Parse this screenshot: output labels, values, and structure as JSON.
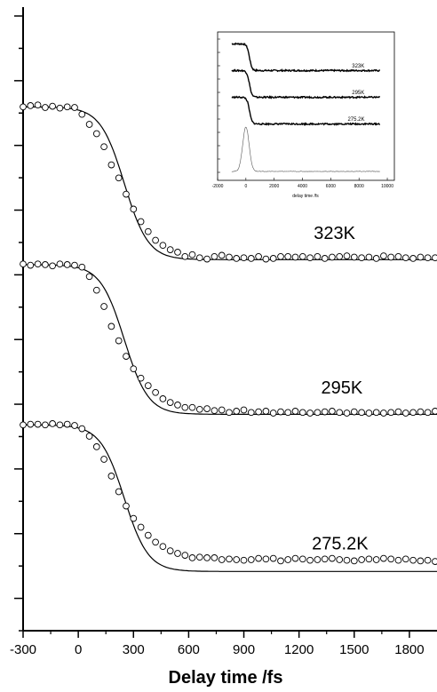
{
  "chart_data": [
    {
      "type": "scatter",
      "title": "",
      "xlabel": "Delay time /fs",
      "ylabel": "",
      "xlim": [
        -300,
        1950
      ],
      "xticks": [
        -300,
        0,
        300,
        600,
        900,
        1200,
        1500,
        1800
      ],
      "xtick_labels": [
        "-300",
        "0",
        "300",
        "600",
        "900",
        "1200",
        "1500",
        "1800"
      ],
      "ylim": [
        0,
        1
      ],
      "grid": false,
      "series": [
        {
          "name": "323K",
          "baseline": 0.84,
          "drop": 0.245,
          "center": 250,
          "width": 130,
          "x": [
            -300,
            -260,
            -220,
            -180,
            -140,
            -100,
            -60,
            -20,
            20,
            60,
            100,
            140,
            180,
            220,
            260,
            300,
            340,
            380,
            420,
            460,
            500,
            540,
            580,
            620,
            660,
            700,
            740,
            780,
            820,
            860,
            900,
            940,
            980,
            1020,
            1060,
            1100,
            1140,
            1180,
            1220,
            1260,
            1300,
            1340,
            1380,
            1420,
            1460,
            1500,
            1540,
            1580,
            1620,
            1660,
            1700,
            1740,
            1780,
            1820,
            1860,
            1900,
            1940
          ],
          "y": [
            0.84,
            0.842,
            0.843,
            0.839,
            0.841,
            0.838,
            0.84,
            0.839,
            0.828,
            0.812,
            0.797,
            0.776,
            0.747,
            0.726,
            0.7,
            0.676,
            0.656,
            0.64,
            0.626,
            0.618,
            0.611,
            0.607,
            0.6,
            0.603,
            0.598,
            0.596,
            0.6,
            0.602,
            0.599,
            0.597,
            0.598,
            0.597,
            0.6,
            0.596,
            0.597,
            0.6,
            0.6,
            0.599,
            0.6,
            0.598,
            0.6,
            0.597,
            0.599,
            0.6,
            0.601,
            0.599,
            0.598,
            0.599,
            0.597,
            0.601,
            0.599,
            0.6,
            0.598,
            0.597,
            0.599,
            0.598,
            0.598
          ],
          "label_x": 1280,
          "label_y": 0.628
        },
        {
          "name": "295K",
          "baseline": 0.587,
          "drop": 0.24,
          "center": 250,
          "width": 130,
          "x": [
            -300,
            -260,
            -220,
            -180,
            -140,
            -100,
            -60,
            -20,
            20,
            60,
            100,
            140,
            180,
            220,
            260,
            300,
            340,
            380,
            420,
            460,
            500,
            540,
            580,
            620,
            660,
            700,
            740,
            780,
            820,
            860,
            900,
            940,
            980,
            1020,
            1060,
            1100,
            1140,
            1180,
            1220,
            1260,
            1300,
            1340,
            1380,
            1420,
            1460,
            1500,
            1540,
            1580,
            1620,
            1660,
            1700,
            1740,
            1780,
            1820,
            1860,
            1900,
            1940
          ],
          "y": [
            0.588,
            0.586,
            0.588,
            0.587,
            0.585,
            0.588,
            0.587,
            0.586,
            0.583,
            0.568,
            0.546,
            0.52,
            0.488,
            0.465,
            0.44,
            0.42,
            0.405,
            0.393,
            0.382,
            0.372,
            0.366,
            0.362,
            0.358,
            0.358,
            0.355,
            0.356,
            0.353,
            0.354,
            0.35,
            0.352,
            0.354,
            0.35,
            0.351,
            0.352,
            0.349,
            0.351,
            0.35,
            0.352,
            0.35,
            0.349,
            0.35,
            0.351,
            0.352,
            0.35,
            0.349,
            0.351,
            0.35,
            0.349,
            0.35,
            0.349,
            0.35,
            0.351,
            0.349,
            0.35,
            0.351,
            0.35,
            0.352
          ],
          "label_x": 1320,
          "label_y": 0.38
        },
        {
          "name": "275.2K",
          "baseline": 0.33,
          "drop": 0.235,
          "center": 250,
          "width": 130,
          "x": [
            -300,
            -260,
            -220,
            -180,
            -140,
            -100,
            -60,
            -20,
            20,
            60,
            100,
            140,
            180,
            220,
            260,
            300,
            340,
            380,
            420,
            460,
            500,
            540,
            580,
            620,
            660,
            700,
            740,
            780,
            820,
            860,
            900,
            940,
            980,
            1020,
            1060,
            1100,
            1140,
            1180,
            1220,
            1260,
            1300,
            1340,
            1380,
            1420,
            1460,
            1500,
            1540,
            1580,
            1620,
            1660,
            1700,
            1740,
            1780,
            1820,
            1860,
            1900,
            1940
          ],
          "y": [
            0.33,
            0.331,
            0.331,
            0.33,
            0.332,
            0.33,
            0.331,
            0.329,
            0.324,
            0.312,
            0.295,
            0.275,
            0.248,
            0.223,
            0.2,
            0.18,
            0.166,
            0.153,
            0.142,
            0.135,
            0.128,
            0.124,
            0.121,
            0.117,
            0.118,
            0.117,
            0.117,
            0.114,
            0.115,
            0.114,
            0.113,
            0.114,
            0.116,
            0.115,
            0.116,
            0.112,
            0.114,
            0.116,
            0.115,
            0.113,
            0.114,
            0.115,
            0.116,
            0.114,
            0.113,
            0.112,
            0.114,
            0.115,
            0.114,
            0.116,
            0.115,
            0.113,
            0.115,
            0.113,
            0.112,
            0.113,
            0.111
          ],
          "label_x": 1270,
          "label_y": 0.13
        }
      ]
    },
    {
      "type": "line",
      "title": "",
      "xlabel": "delay time /fs",
      "ylabel": "",
      "xlim": [
        -2000,
        10500
      ],
      "xticks": [
        -2000,
        0,
        2000,
        4000,
        6000,
        8000,
        10000
      ],
      "xtick_labels": [
        "-2000",
        "0",
        "2000",
        "4000",
        "6000",
        "8000",
        "10000"
      ],
      "ylim": [
        0,
        1
      ],
      "grid": false,
      "series": [
        {
          "name": "323K",
          "baseline": 0.92,
          "drop": 0.18,
          "x0": -1000,
          "x1": 9500,
          "label_x": 7500,
          "label_y": 0.76
        },
        {
          "name": "295K",
          "baseline": 0.74,
          "drop": 0.18,
          "x0": -1000,
          "x1": 9500,
          "label_x": 7500,
          "label_y": 0.58
        },
        {
          "name": "275.2K",
          "baseline": 0.56,
          "drop": 0.18,
          "x0": -1000,
          "x1": 9500,
          "label_x": 7200,
          "label_y": 0.4
        },
        {
          "name": "",
          "type": "pulse",
          "baseline": 0.06,
          "peak": 0.3,
          "center": 0,
          "width": 320,
          "x0": -1000,
          "x1": 9500
        }
      ]
    }
  ]
}
